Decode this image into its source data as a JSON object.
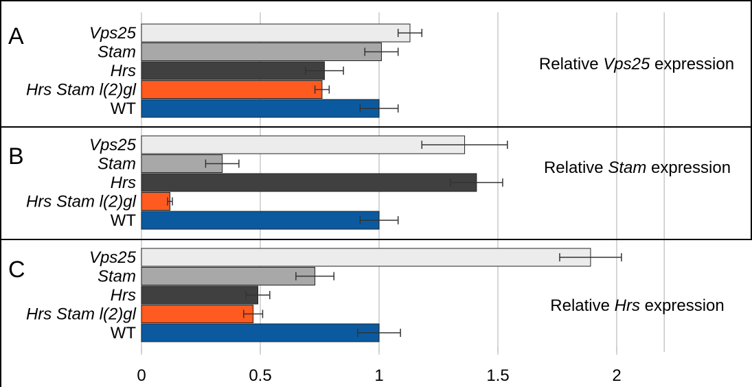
{
  "panel_letters": [
    "A",
    "B",
    "C"
  ],
  "categories": [
    {
      "name": "Vps25",
      "italic": true,
      "color": "#ececec"
    },
    {
      "name": "Stam",
      "italic": true,
      "color": "#a8a8a8"
    },
    {
      "name": "Hrs",
      "italic": true,
      "color": "#404040"
    },
    {
      "name": "Hrs Stam l(2)gl",
      "italic": true,
      "color": "#ff5a1f"
    },
    {
      "name": "WT",
      "italic": false,
      "color": "#0b5aa0"
    }
  ],
  "annotations": [
    {
      "prefix": "Relative ",
      "gene": "Vps25",
      "suffix": " expression"
    },
    {
      "prefix": "Relative ",
      "gene": "Stam",
      "suffix": " expression"
    },
    {
      "prefix": "Relative ",
      "gene": "Hrs",
      "suffix": " expression"
    }
  ],
  "chart_data": [
    {
      "type": "bar",
      "orientation": "horizontal",
      "panel": "A",
      "categories": [
        "Vps25",
        "Stam",
        "Hrs",
        "Hrs Stam l(2)gl",
        "WT"
      ],
      "values": [
        1.13,
        1.01,
        0.77,
        0.76,
        1.0
      ],
      "errors": [
        0.05,
        0.07,
        0.08,
        0.03,
        0.08
      ],
      "xlim": [
        0,
        2.2
      ],
      "grid": true
    },
    {
      "type": "bar",
      "orientation": "horizontal",
      "panel": "B",
      "categories": [
        "Vps25",
        "Stam",
        "Hrs",
        "Hrs Stam l(2)gl",
        "WT"
      ],
      "values": [
        1.36,
        0.34,
        1.41,
        0.12,
        1.0
      ],
      "errors": [
        0.18,
        0.07,
        0.11,
        0.01,
        0.08
      ],
      "xlim": [
        0,
        2.2
      ],
      "grid": true
    },
    {
      "type": "bar",
      "orientation": "horizontal",
      "panel": "C",
      "categories": [
        "Vps25",
        "Stam",
        "Hrs",
        "Hrs Stam l(2)gl",
        "WT"
      ],
      "values": [
        1.89,
        0.73,
        0.49,
        0.47,
        1.0
      ],
      "errors": [
        0.13,
        0.08,
        0.05,
        0.04,
        0.09
      ],
      "xlim": [
        0,
        2.2
      ],
      "grid": true
    }
  ],
  "x_axis": {
    "ticks": [
      0,
      0.5,
      1,
      1.5,
      2
    ],
    "tick_labels": [
      "0",
      "0.5",
      "1",
      "1.5",
      "2"
    ]
  }
}
